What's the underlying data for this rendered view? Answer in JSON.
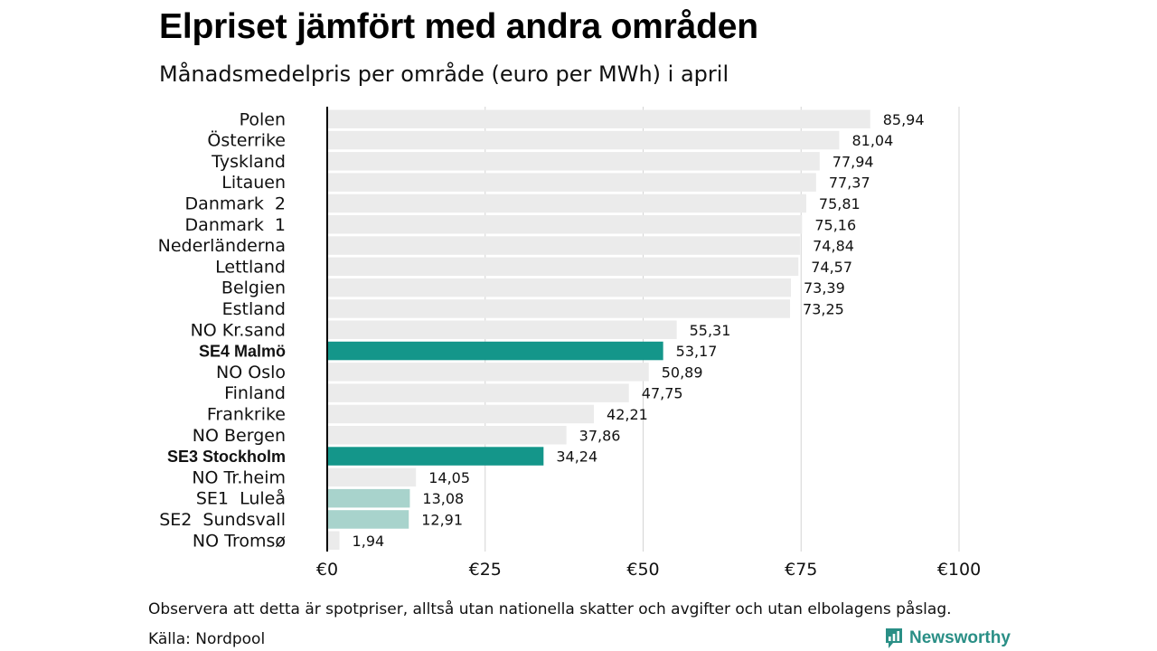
{
  "title": "Elpriset jämfört med andra områden",
  "subtitle": "Månadsmedelpris per område (euro per MWh) i april",
  "note": "Observera att detta är spotpriser, alltså utan nationella skatter och avgifter och utan elbolagens påslag.",
  "source": "Källa: Nordpool",
  "brand": "Newsworthy",
  "colors": {
    "default": "#ebebeb",
    "highlight": "#14968a",
    "light": "#a8d3cc",
    "brand": "#2a8f86"
  },
  "chart_data": {
    "type": "bar",
    "orientation": "horizontal",
    "title": "Elpriset jämfört med andra områden",
    "subtitle": "Månadsmedelpris per område (euro per MWh) i april",
    "xlim": [
      0,
      100
    ],
    "xticks": [
      "€0",
      "€25",
      "€50",
      "€75",
      "€100"
    ],
    "xtick_values": [
      0,
      25,
      50,
      75,
      100
    ],
    "grid": true,
    "categories": [
      "Polen",
      "Österrike",
      "Tyskland",
      "Litauen",
      "Danmark  2",
      "Danmark  1",
      "Nederländerna",
      "Lettland",
      "Belgien",
      "Estland",
      "NO Kr.sand",
      "SE4 Malmö",
      "NO Oslo",
      "Finland",
      "Frankrike",
      "NO Bergen",
      "SE3 Stockholm",
      "NO Tr.heim",
      "SE1  Luleå",
      "SE2  Sundsvall",
      "NO Tromsø"
    ],
    "values": [
      85.94,
      81.04,
      77.94,
      77.37,
      75.81,
      75.16,
      74.84,
      74.57,
      73.39,
      73.25,
      55.31,
      53.17,
      50.89,
      47.75,
      42.21,
      37.86,
      34.24,
      14.05,
      13.08,
      12.91,
      1.94
    ],
    "value_labels": [
      "85,94",
      "81,04",
      "77,94",
      "77,37",
      "75,81",
      "75,16",
      "74,84",
      "74,57",
      "73,39",
      "73,25",
      "55,31",
      "53,17",
      "50,89",
      "47,75",
      "42,21",
      "37,86",
      "34,24",
      "14,05",
      "13,08",
      "12,91",
      "1,94"
    ],
    "styles": [
      "default",
      "default",
      "default",
      "default",
      "default",
      "default",
      "default",
      "default",
      "default",
      "default",
      "default",
      "highlight",
      "default",
      "default",
      "default",
      "default",
      "highlight",
      "default",
      "light",
      "light",
      "default"
    ]
  }
}
